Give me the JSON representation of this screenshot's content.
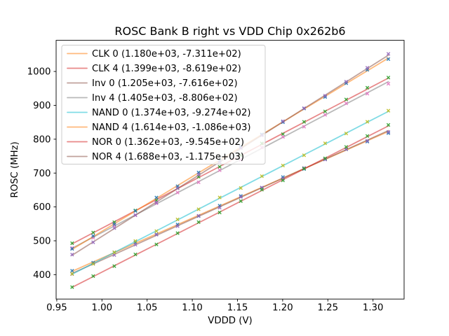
{
  "window": {
    "background": "#ffffff"
  },
  "chart_data": {
    "type": "scatter",
    "title": "ROSC Bank B right vs VDD Chip 0x262b6",
    "xlabel": "VDDD (V)",
    "ylabel": "ROSC (MHz)",
    "xlim": [
      0.9493,
      1.3344
    ],
    "ylim": [
      328,
      1092
    ],
    "grid": false,
    "legend_position": "upper-left",
    "axis_color": "#000000",
    "legend_border_color": "#cccccc",
    "line_opacity": 0.55,
    "marker_opacity": 0.9,
    "xticks": [
      {
        "v": 0.95,
        "label": "0.95"
      },
      {
        "v": 1.0,
        "label": "1.00"
      },
      {
        "v": 1.05,
        "label": "1.05"
      },
      {
        "v": 1.1,
        "label": "1.10"
      },
      {
        "v": 1.15,
        "label": "1.15"
      },
      {
        "v": 1.2,
        "label": "1.20"
      },
      {
        "v": 1.25,
        "label": "1.25"
      },
      {
        "v": 1.3,
        "label": "1.30"
      }
    ],
    "yticks": [
      {
        "v": 400,
        "label": "400"
      },
      {
        "v": 500,
        "label": "500"
      },
      {
        "v": 600,
        "label": "600"
      },
      {
        "v": 700,
        "label": "700"
      },
      {
        "v": 800,
        "label": "800"
      },
      {
        "v": 900,
        "label": "900"
      },
      {
        "v": 1000,
        "label": "1000"
      }
    ],
    "x": [
      0.967,
      0.9903,
      1.0137,
      1.037,
      1.0603,
      1.0837,
      1.107,
      1.1303,
      1.1537,
      1.177,
      1.2003,
      1.2237,
      1.247,
      1.2703,
      1.2937,
      1.317
    ],
    "series": [
      {
        "name": "CLK 0",
        "legend_label": "CLK 0 (1.180e+03, -7.311e+02)",
        "slope": 1180.0,
        "intercept": -731.1,
        "line_color": "#ff7f0e",
        "marker_color": "#1f77b4",
        "y": [
          411.5,
          435.5,
          465.9,
          495.1,
          518.9,
          548.2,
          573.0,
          603.7,
          632.3,
          656.3,
          688.3,
          711.9,
          740.9,
          770.1,
          793.0,
          818.0
        ]
      },
      {
        "name": "CLK 4",
        "legend_label": "CLK 4 (1.399e+03, -8.619e+02)",
        "slope": 1399.0,
        "intercept": -861.9,
        "line_color": "#d62728",
        "marker_color": "#2ca02c",
        "y": [
          492.9,
          524.5,
          554.8,
          589.6,
          619.5,
          655.7,
          689.3,
          718.4,
          752.6,
          787.7,
          814.8,
          851.3,
          881.9,
          917.3,
          952.0,
          982.1
        ]
      },
      {
        "name": "Inv 0",
        "legend_label": "Inv 0 (1.205e+03, -7.616e+02)",
        "slope": 1205.0,
        "intercept": -761.6,
        "line_color": "#8c564b",
        "marker_color": "#9467bd",
        "y": [
          401.6,
          432.7,
          458.1,
          488.5,
          518.1,
          543.3,
          573.8,
          597.9,
          629.6,
          657.2,
          683.3,
          715.0,
          740.0,
          770.6,
          795.3,
          821.4
        ]
      },
      {
        "name": "Inv 4",
        "legend_label": "Inv 4 (1.405e+03, -8.806e+02)",
        "slope": 1405.0,
        "intercept": -880.6,
        "line_color": "#7f7f7f",
        "marker_color": "#e377c2",
        "y": [
          479.0,
          508.8,
          545.2,
          575.4,
          611.1,
          642.5,
          672.7,
          708.5,
          738.9,
          775.6,
          806.8,
          836.7,
          871.9,
          905.7,
          934.6,
          963.8
        ]
      },
      {
        "name": "NAND 0",
        "legend_label": "NAND 0 (1.374e+03, -9.274e+02)",
        "slope": 1374.0,
        "intercept": -927.4,
        "line_color": "#17becf",
        "marker_color": "#bcbd22",
        "y": [
          402.3,
          431.8,
          465.9,
          499.4,
          528.5,
          563.1,
          593.1,
          628.1,
          655.8,
          690.8,
          722.3,
          752.5,
          788.0,
          817.0,
          851.6,
          884.2
        ]
      },
      {
        "name": "NAND 4",
        "legend_label": "NAND 4 (1.614e+03, -1.086e+03)",
        "slope": 1614.0,
        "intercept": -1086.0,
        "line_color": "#ff7f0e",
        "marker_color": "#1f77b4",
        "y": [
          476.2,
          514.3,
          549.1,
          588.2,
          627.8,
          661.1,
          701.7,
          736.8,
          778.1,
          814.2,
          850.3,
          890.6,
          924.7,
          965.3,
          1005.0,
          1036.6
        ]
      },
      {
        "name": "NOR 0",
        "legend_label": "NOR 0 (1.362e+03, -9.545e+02)",
        "slope": 1362.0,
        "intercept": -954.5,
        "line_color": "#d62728",
        "marker_color": "#2ca02c",
        "y": [
          363.1,
          395.8,
          425.2,
          459.9,
          489.2,
          522.5,
          555.2,
          583.5,
          617.3,
          651.1,
          678.3,
          713.2,
          743.4,
          777.2,
          809.5,
          842.3
        ]
      },
      {
        "name": "NOR 4",
        "legend_label": "NOR 4 (1.688e+03, -1.175e+03)",
        "slope": 1688.0,
        "intercept": -1175.0,
        "line_color": "#8c564b",
        "marker_color": "#9467bd",
        "y": [
          459.3,
          495.6,
          537.6,
          576.0,
          612.8,
          655.3,
          696.1,
          732.0,
          773.9,
          811.3,
          853.1,
          891.6,
          928.4,
          969.8,
          1010.8,
          1052.1
        ]
      }
    ]
  }
}
